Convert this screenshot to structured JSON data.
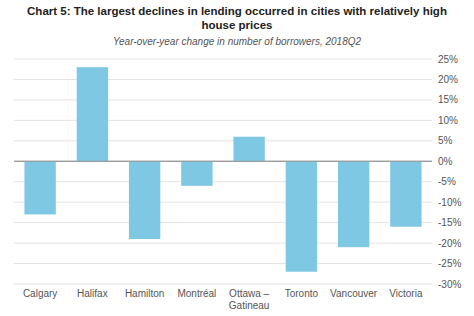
{
  "chart_data": {
    "type": "bar",
    "title": "Chart 5: The largest declines in lending occurred in cities with relatively high house prices",
    "subtitle": "Year-over-year change in number of borrowers, 2018Q2",
    "categories": [
      "Calgary",
      "Halifax",
      "Hamilton",
      "Montréal",
      "Ottawa –\nGatineau",
      "Toronto",
      "Vancouver",
      "Victoria"
    ],
    "values": [
      -13,
      23,
      -19,
      -6,
      6,
      -27,
      -21,
      -16
    ],
    "color": "#7ec8e3",
    "ylim": [
      -30,
      25
    ],
    "yticks": [
      {
        "value": -30,
        "label": "-30%"
      },
      {
        "value": -25,
        "label": "-25%"
      },
      {
        "value": -20,
        "label": "-20%"
      },
      {
        "value": -15,
        "label": "-15%"
      },
      {
        "value": -10,
        "label": "-10%"
      },
      {
        "value": -5,
        "label": "-5%"
      },
      {
        "value": 0,
        "label": "0%"
      },
      {
        "value": 5,
        "label": "5%"
      },
      {
        "value": 10,
        "label": "10%"
      },
      {
        "value": 15,
        "label": "15%"
      },
      {
        "value": 20,
        "label": "20%"
      },
      {
        "value": 25,
        "label": "25%"
      }
    ],
    "grid": true
  }
}
